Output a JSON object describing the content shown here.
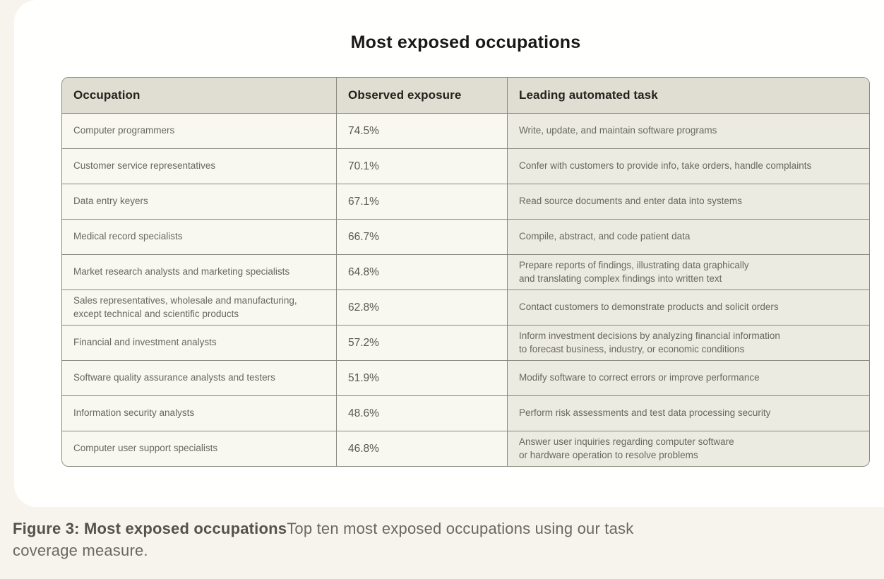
{
  "page": {
    "background_color": "#f6f4ed",
    "card_background_color": "#fffffd"
  },
  "title": "Most exposed occupations",
  "table": {
    "colors": {
      "border": "#8a8980",
      "header_background": "#e0ded3",
      "cell_background": "#f8f7f0",
      "task_column_background": "#ecebe1"
    },
    "columns": [
      "Occupation",
      "Observed exposure",
      "Leading automated task"
    ],
    "rows": [
      {
        "occupation": "Computer programmers",
        "exposure": "74.5%",
        "task": "Write, update, and maintain software programs"
      },
      {
        "occupation": "Customer service representatives",
        "exposure": "70.1%",
        "task": "Confer with customers to provide info, take orders, handle complaints"
      },
      {
        "occupation": "Data entry keyers",
        "exposure": "67.1%",
        "task": "Read source documents and enter data into systems"
      },
      {
        "occupation": "Medical record specialists",
        "exposure": "66.7%",
        "task": "Compile, abstract, and code patient data"
      },
      {
        "occupation": "Market research analysts and marketing specialists",
        "exposure": "64.8%",
        "task": "Prepare reports of findings, illustrating data graphically\nand translating complex findings into written text"
      },
      {
        "occupation": "Sales representatives, wholesale and manufacturing,\nexcept technical and scientific products",
        "exposure": "62.8%",
        "task": "Contact customers to demonstrate products and solicit orders"
      },
      {
        "occupation": "Financial and investment analysts",
        "exposure": "57.2%",
        "task": "Inform investment decisions by analyzing financial information\nto forecast business, industry, or economic conditions"
      },
      {
        "occupation": "Software quality assurance analysts and testers",
        "exposure": "51.9%",
        "task": "Modify software to correct errors or improve performance"
      },
      {
        "occupation": "Information security analysts",
        "exposure": "48.6%",
        "task": "Perform risk assessments and test data processing security"
      },
      {
        "occupation": "Computer user support specialists",
        "exposure": "46.8%",
        "task": "Answer user inquiries regarding computer software\nor hardware operation to resolve problems"
      }
    ]
  },
  "caption": {
    "label": "Figure 3: Most exposed occupations",
    "text": "Top ten most exposed occupations using our task\ncoverage measure."
  },
  "chart_data": {
    "type": "table",
    "title": "Most exposed occupations",
    "columns": [
      "Occupation",
      "Observed exposure",
      "Leading automated task"
    ],
    "categories": [
      "Computer programmers",
      "Customer service representatives",
      "Data entry keyers",
      "Medical record specialists",
      "Market research analysts and marketing specialists",
      "Sales representatives, wholesale and manufacturing, except technical and scientific products",
      "Financial and investment analysts",
      "Software quality assurance analysts and testers",
      "Information security analysts",
      "Computer user support specialists"
    ],
    "values": [
      74.5,
      70.1,
      67.1,
      66.7,
      64.8,
      62.8,
      57.2,
      51.9,
      48.6,
      46.8
    ],
    "value_unit": "%"
  }
}
